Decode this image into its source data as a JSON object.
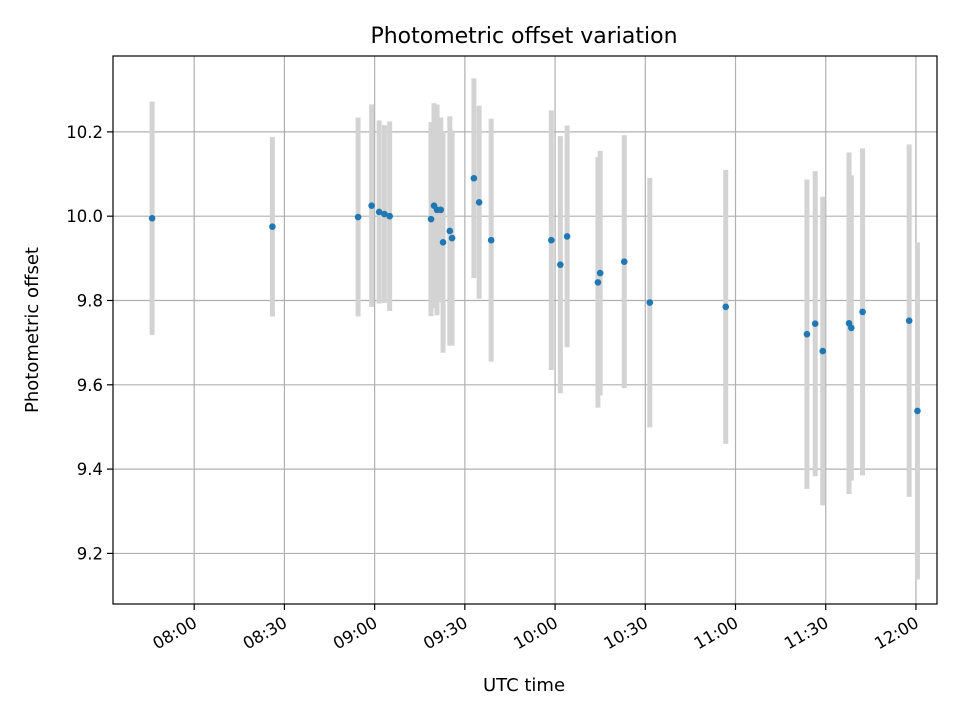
{
  "chart_data": {
    "type": "scatter",
    "title": "Photometric offset variation",
    "xlabel": "UTC time",
    "ylabel": "Photometric offset",
    "xlim": [
      "07:33",
      "12:07"
    ],
    "ylim": [
      9.08,
      10.38
    ],
    "xticks": [
      "08:00",
      "08:30",
      "09:00",
      "09:30",
      "10:00",
      "10:30",
      "11:00",
      "11:30",
      "12:00"
    ],
    "yticks": [
      "9.2",
      "9.4",
      "9.6",
      "9.8",
      "10.0",
      "10.2"
    ],
    "grid": true,
    "point_color": "#1f77b4",
    "errorbar_color": "#d3d3d3",
    "points": [
      {
        "x": "07:46:00",
        "y": 9.995,
        "err": 0.277
      },
      {
        "x": "08:26:00",
        "y": 9.975,
        "err": 0.213
      },
      {
        "x": "08:54:30",
        "y": 9.998,
        "err": 0.236
      },
      {
        "x": "08:59:00",
        "y": 10.025,
        "err": 0.24
      },
      {
        "x": "09:01:30",
        "y": 10.01,
        "err": 0.217
      },
      {
        "x": "09:03:15",
        "y": 10.005,
        "err": 0.211
      },
      {
        "x": "09:05:00",
        "y": 10.0,
        "err": 0.225
      },
      {
        "x": "09:18:45",
        "y": 9.993,
        "err": 0.23
      },
      {
        "x": "09:19:45",
        "y": 10.025,
        "err": 0.243
      },
      {
        "x": "09:20:45",
        "y": 10.015,
        "err": 0.25
      },
      {
        "x": "09:22:00",
        "y": 10.015,
        "err": 0.219
      },
      {
        "x": "09:22:45",
        "y": 9.938,
        "err": 0.262
      },
      {
        "x": "09:25:00",
        "y": 9.965,
        "err": 0.272
      },
      {
        "x": "09:25:45",
        "y": 9.948,
        "err": 0.255
      },
      {
        "x": "09:33:00",
        "y": 10.09,
        "err": 0.237
      },
      {
        "x": "09:34:45",
        "y": 10.033,
        "err": 0.229
      },
      {
        "x": "09:38:45",
        "y": 9.943,
        "err": 0.288
      },
      {
        "x": "09:58:45",
        "y": 9.943,
        "err": 0.308
      },
      {
        "x": "10:01:45",
        "y": 9.885,
        "err": 0.305
      },
      {
        "x": "10:04:00",
        "y": 9.952,
        "err": 0.263
      },
      {
        "x": "10:14:15",
        "y": 9.843,
        "err": 0.297
      },
      {
        "x": "10:15:00",
        "y": 9.865,
        "err": 0.29
      },
      {
        "x": "10:23:00",
        "y": 9.892,
        "err": 0.3
      },
      {
        "x": "10:31:30",
        "y": 9.795,
        "err": 0.296
      },
      {
        "x": "10:56:45",
        "y": 9.785,
        "err": 0.325
      },
      {
        "x": "11:23:45",
        "y": 9.72,
        "err": 0.367
      },
      {
        "x": "11:26:30",
        "y": 9.745,
        "err": 0.362
      },
      {
        "x": "11:29:00",
        "y": 9.68,
        "err": 0.366
      },
      {
        "x": "11:37:45",
        "y": 9.746,
        "err": 0.405
      },
      {
        "x": "11:38:30",
        "y": 9.735,
        "err": 0.362
      },
      {
        "x": "11:42:15",
        "y": 9.773,
        "err": 0.388
      },
      {
        "x": "11:57:45",
        "y": 9.752,
        "err": 0.418
      },
      {
        "x": "12:00:30",
        "y": 9.538,
        "err": 0.4
      }
    ]
  }
}
